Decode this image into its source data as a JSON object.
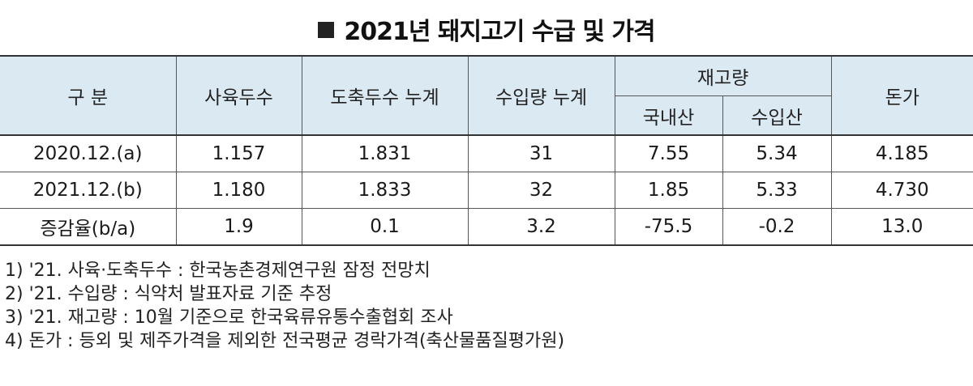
{
  "title": "2021년 돼지고기 수급 및 가격",
  "table": {
    "headers": {
      "category": "구 분",
      "breeding_count": "사육두수",
      "slaughter_cumulative": "도축두수 누계",
      "import_cumulative": "수입량 누계",
      "inventory": "재고량",
      "inventory_domestic": "국내산",
      "inventory_imported": "수입산",
      "price": "돈가"
    },
    "rows": [
      [
        "2020.12.(a)",
        "1.157",
        "1.831",
        "31",
        "7.55",
        "5.34",
        "4.185"
      ],
      [
        "2021.12.(b)",
        "1.180",
        "1.833",
        "32",
        "1.85",
        "5.33",
        "4.730"
      ],
      [
        "증감율(b/a)",
        "1.9",
        "0.1",
        "3.2",
        "-75.5",
        "-0.2",
        "13.0"
      ]
    ]
  },
  "notes": [
    "1) '21. 사육·도축두수 : 한국농촌경제연구원 잠정 전망치",
    "2) '21. 수입량 : 식약처 발표자료 기준 추정",
    "3) '21. 재고량 : 10월 기준으로 한국육류유통수출협회 조사",
    "4) 돈가 : 등외 및 제주가격을 제외한 전국평균 경락가격(축산물품질평가원)"
  ]
}
